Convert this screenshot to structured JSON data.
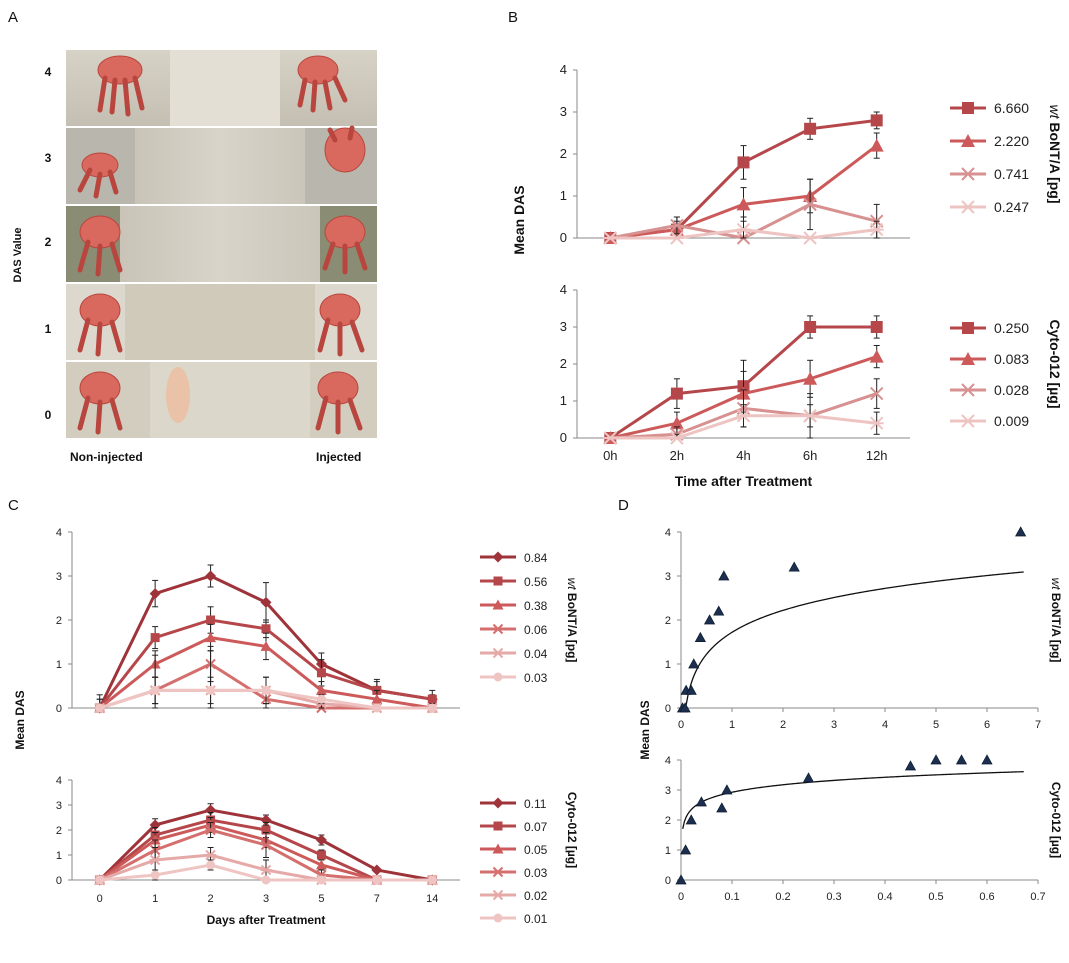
{
  "panel_labels": {
    "A": "A",
    "B": "B",
    "C": "C",
    "D": "D"
  },
  "panelA": {
    "ylabel": "DAS Value",
    "rows": [
      "4",
      "3",
      "2",
      "1",
      "0"
    ],
    "left_label": "Non-injected",
    "right_label": "Injected"
  },
  "chart_data": [
    {
      "id": "B-top",
      "type": "line",
      "categories": [
        "0h",
        "2h",
        "4h",
        "6h",
        "12h"
      ],
      "ylim": [
        0,
        4
      ],
      "yticks": [
        0,
        1,
        2,
        3,
        4
      ],
      "side_title_italic": "wt",
      "side_title": " BoNT/A [pg]",
      "series": [
        {
          "name": "6.660",
          "marker": "square",
          "color": "#b5474b",
          "values": [
            0,
            0.2,
            1.8,
            2.6,
            2.8
          ],
          "err": [
            0,
            0.3,
            0.4,
            0.25,
            0.2
          ]
        },
        {
          "name": "2.220",
          "marker": "triangle",
          "color": "#cd5a5a",
          "values": [
            0,
            0.2,
            0.8,
            1.0,
            2.2
          ],
          "err": [
            0,
            0.2,
            0.4,
            0.4,
            0.3
          ]
        },
        {
          "name": "0.741",
          "marker": "x",
          "color": "#d69190",
          "values": [
            0,
            0.3,
            0,
            0.8,
            0.4
          ],
          "err": [
            0,
            0.2,
            0,
            0.6,
            0.4
          ]
        },
        {
          "name": "0.247",
          "marker": "star",
          "color": "#edc4c2",
          "values": [
            0,
            0,
            0.2,
            0,
            0.2
          ],
          "err": [
            0,
            0,
            0.3,
            0,
            0.2
          ]
        }
      ]
    },
    {
      "id": "B-bottom",
      "type": "line",
      "categories": [
        "0h",
        "2h",
        "4h",
        "6h",
        "12h"
      ],
      "ylim": [
        0,
        4
      ],
      "yticks": [
        0,
        1,
        2,
        3,
        4
      ],
      "ylabel": "Mean DAS",
      "xlabel": "Time after Treatment",
      "side_title": "Cyto-012 [µg]",
      "series": [
        {
          "name": "0.250",
          "marker": "square",
          "color": "#b5474b",
          "values": [
            0,
            1.2,
            1.4,
            3.0,
            3.0
          ],
          "err": [
            0,
            0.4,
            0.7,
            0.3,
            0.3
          ]
        },
        {
          "name": "0.083",
          "marker": "triangle",
          "color": "#cd5a5a",
          "values": [
            0,
            0.4,
            1.2,
            1.6,
            2.2
          ],
          "err": [
            0,
            0.3,
            0.6,
            0.5,
            0.3
          ]
        },
        {
          "name": "0.028",
          "marker": "x",
          "color": "#d69190",
          "values": [
            0,
            0.1,
            0.8,
            0.6,
            1.2
          ],
          "err": [
            0,
            0.2,
            0.5,
            0.6,
            0.4
          ]
        },
        {
          "name": "0.009",
          "marker": "star",
          "color": "#edc4c2",
          "values": [
            0,
            0,
            0.6,
            0.6,
            0.4
          ],
          "err": [
            0,
            0.1,
            0.3,
            0.3,
            0.3
          ]
        }
      ]
    },
    {
      "id": "C-top",
      "type": "line",
      "categories": [
        "0",
        "1",
        "2",
        "3",
        "5",
        "7",
        "14"
      ],
      "ylim": [
        0,
        4
      ],
      "yticks": [
        0,
        1,
        2,
        3,
        4
      ],
      "side_title_italic": "wt",
      "side_title": " BoNT/A [pg]",
      "series": [
        {
          "name": "0.84",
          "marker": "diamond",
          "color": "#9e3339",
          "values": [
            0,
            2.6,
            3.0,
            2.4,
            1.0,
            0.4,
            0.2
          ],
          "err": [
            0.3,
            0.3,
            0.25,
            0.45,
            0.25,
            0.25,
            0.2
          ]
        },
        {
          "name": "0.56",
          "marker": "square",
          "color": "#b5474b",
          "values": [
            0,
            1.6,
            2.0,
            1.8,
            0.8,
            0.4,
            0.2
          ],
          "err": [
            0.2,
            0.25,
            0.3,
            0.2,
            0.3,
            0.2,
            0.1
          ]
        },
        {
          "name": "0.38",
          "marker": "triangle",
          "color": "#cd5a5a",
          "values": [
            0,
            1.0,
            1.6,
            1.4,
            0.4,
            0.2,
            0
          ],
          "err": [
            0.2,
            0.3,
            0.3,
            0.3,
            0.2,
            0.2,
            0.1
          ]
        },
        {
          "name": "0.06",
          "marker": "x",
          "color": "#d46f6e",
          "values": [
            0,
            0.4,
            1.0,
            0.2,
            0,
            0,
            0
          ],
          "err": [
            0,
            0.3,
            0.4,
            0.2,
            0,
            0,
            0
          ]
        },
        {
          "name": "0.04",
          "marker": "star",
          "color": "#e5a9a7",
          "values": [
            0,
            0.4,
            0.4,
            0.4,
            0.1,
            0,
            0
          ],
          "err": [
            0,
            0.8,
            0.9,
            0.3,
            0.1,
            0,
            0
          ]
        },
        {
          "name": "0.03",
          "marker": "circle",
          "color": "#efc5c3",
          "values": [
            0,
            0.4,
            0.4,
            0.4,
            0.2,
            0,
            0
          ],
          "err": [
            0,
            0.3,
            0.3,
            0.3,
            0.1,
            0,
            0
          ]
        }
      ]
    },
    {
      "id": "C-bottom",
      "type": "line",
      "categories": [
        "0",
        "1",
        "2",
        "3",
        "5",
        "7",
        "14"
      ],
      "ylim": [
        0,
        4
      ],
      "yticks": [
        0,
        1,
        2,
        3,
        4
      ],
      "ylabel": "Mean DAS",
      "xlabel": "Days after Treatment",
      "side_title": "Cyto-012 [µg]",
      "series": [
        {
          "name": "0.11",
          "marker": "diamond",
          "color": "#9e3339",
          "values": [
            0,
            2.2,
            2.8,
            2.4,
            1.6,
            0.4,
            0
          ],
          "err": [
            0,
            0.25,
            0.25,
            0.2,
            0.2,
            0,
            0
          ]
        },
        {
          "name": "0.07",
          "marker": "square",
          "color": "#b5474b",
          "values": [
            0,
            1.8,
            2.4,
            2.0,
            1.0,
            0,
            0
          ],
          "err": [
            0,
            0.3,
            0.3,
            0.3,
            0.2,
            0,
            0
          ]
        },
        {
          "name": "0.05",
          "marker": "triangle",
          "color": "#cd5a5a",
          "values": [
            0,
            1.6,
            2.2,
            1.6,
            0.6,
            0,
            0
          ],
          "err": [
            0,
            0.3,
            0.3,
            0.3,
            0.2,
            0,
            0
          ]
        },
        {
          "name": "0.03",
          "marker": "x",
          "color": "#d46f6e",
          "values": [
            0,
            1.2,
            2.0,
            1.4,
            0.2,
            0,
            0
          ],
          "err": [
            0,
            0.4,
            0.3,
            0.5,
            0.2,
            0,
            0
          ]
        },
        {
          "name": "0.02",
          "marker": "star",
          "color": "#e5a9a7",
          "values": [
            0,
            0.8,
            1.0,
            0.4,
            0,
            0,
            0
          ],
          "err": [
            0,
            0.5,
            0.3,
            0.4,
            0,
            0,
            0
          ]
        },
        {
          "name": "0.01",
          "marker": "circle",
          "color": "#efc5c3",
          "values": [
            0,
            0.2,
            0.6,
            0,
            0,
            0,
            0
          ],
          "err": [
            0,
            0.2,
            0.2,
            0,
            0,
            0,
            0
          ]
        }
      ]
    },
    {
      "id": "D-top",
      "type": "scatter",
      "xlim": [
        0,
        7
      ],
      "xticks": [
        0,
        1,
        2,
        3,
        4,
        5,
        6,
        7
      ],
      "ylim": [
        0,
        4
      ],
      "yticks": [
        0,
        1,
        2,
        3,
        4
      ],
      "side_title_italic": "wt",
      "side_title": " BoNT/A [pg]",
      "points": [
        {
          "x": 0.03,
          "y": 0
        },
        {
          "x": 0.08,
          "y": 0.0
        },
        {
          "x": 0.1,
          "y": 0.4
        },
        {
          "x": 0.2,
          "y": 0.4
        },
        {
          "x": 0.25,
          "y": 1.0
        },
        {
          "x": 0.38,
          "y": 1.6
        },
        {
          "x": 0.56,
          "y": 2.0
        },
        {
          "x": 0.74,
          "y": 2.2
        },
        {
          "x": 0.84,
          "y": 3.0
        },
        {
          "x": 2.22,
          "y": 3.2
        },
        {
          "x": 6.66,
          "y": 4.0
        }
      ],
      "fit": {
        "a": 2.93,
        "b": 0.6,
        "c": 3.3
      }
    },
    {
      "id": "D-bottom",
      "type": "scatter",
      "xlim": [
        0,
        0.7
      ],
      "xticks": [
        0,
        0.1,
        0.2,
        0.3,
        0.4,
        0.5,
        0.6,
        0.7
      ],
      "ylim": [
        0,
        4
      ],
      "yticks": [
        0,
        1,
        2,
        3,
        4
      ],
      "ylabel": "Mean DAS",
      "side_title": "Cyto-012 [µg]",
      "points": [
        {
          "x": 0,
          "y": 0
        },
        {
          "x": 0.009,
          "y": 1.0
        },
        {
          "x": 0.02,
          "y": 2.0
        },
        {
          "x": 0.04,
          "y": 2.6
        },
        {
          "x": 0.08,
          "y": 2.4
        },
        {
          "x": 0.09,
          "y": 3.0
        },
        {
          "x": 0.25,
          "y": 3.4
        },
        {
          "x": 0.45,
          "y": 3.8
        },
        {
          "x": 0.5,
          "y": 4.0
        },
        {
          "x": 0.55,
          "y": 4.0
        },
        {
          "x": 0.6,
          "y": 4.0
        }
      ],
      "fit": {
        "a": 4.87,
        "b": 0.47,
        "c": 0.03
      }
    }
  ]
}
